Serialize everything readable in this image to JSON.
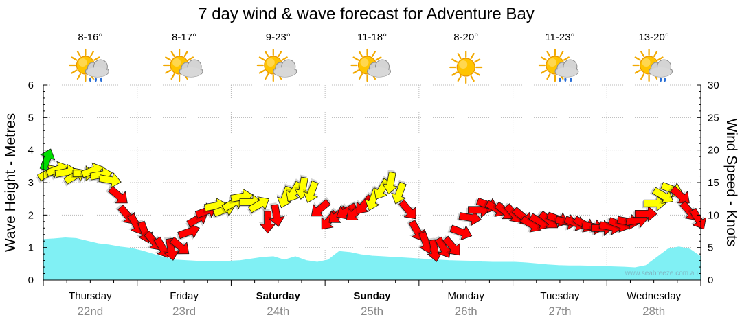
{
  "chart_data": {
    "type": "area",
    "title": "7 day wind & wave forecast for Adventure Bay",
    "ylabel_left": "Wave Height - Metres",
    "ylabel_right": "Wind Speed - Knots",
    "ylim_left": [
      0,
      6
    ],
    "ylim_right": [
      0,
      30
    ],
    "yticks_left": [
      "0",
      "1",
      "2",
      "3",
      "4",
      "5",
      "6"
    ],
    "yticks_right": [
      "0",
      "5",
      "10",
      "15",
      "20",
      "25",
      "30"
    ],
    "grid": true,
    "credit": "www.seabreeze.com.au",
    "days": [
      {
        "day": "Thursday",
        "date": "22nd",
        "temp": "8-16°",
        "weather": "partly-cloudy-showers",
        "bold": false
      },
      {
        "day": "Friday",
        "date": "23rd",
        "temp": "8-17°",
        "weather": "partly-cloudy",
        "bold": false
      },
      {
        "day": "Saturday",
        "date": "24th",
        "temp": "9-23°",
        "weather": "partly-cloudy",
        "bold": true
      },
      {
        "day": "Sunday",
        "date": "25th",
        "temp": "11-18°",
        "weather": "partly-cloudy",
        "bold": true
      },
      {
        "day": "Monday",
        "date": "26th",
        "temp": "8-20°",
        "weather": "sunny",
        "bold": false
      },
      {
        "day": "Tuesday",
        "date": "27th",
        "temp": "11-23°",
        "weather": "partly-cloudy-showers",
        "bold": false
      },
      {
        "day": "Wednesday",
        "date": "28th",
        "temp": "13-20°",
        "weather": "partly-cloudy-shower",
        "bold": false
      }
    ],
    "wave_height_m": [
      1.25,
      1.27,
      1.3,
      1.28,
      1.2,
      1.12,
      1.08,
      1.02,
      0.98,
      0.9,
      0.8,
      0.7,
      0.62,
      0.6,
      0.58,
      0.57,
      0.57,
      0.58,
      0.6,
      0.65,
      0.7,
      0.72,
      0.62,
      0.72,
      0.6,
      0.55,
      0.62,
      0.88,
      0.85,
      0.78,
      0.74,
      0.72,
      0.7,
      0.68,
      0.66,
      0.64,
      0.62,
      0.6,
      0.59,
      0.58,
      0.56,
      0.55,
      0.55,
      0.55,
      0.53,
      0.5,
      0.47,
      0.45,
      0.44,
      0.44,
      0.43,
      0.42,
      0.41,
      0.4,
      0.38,
      0.45,
      0.7,
      0.95,
      1.02,
      0.95,
      0.72
    ],
    "wind_knots": [
      16.5,
      17.0,
      16.6,
      16.0,
      16.4,
      16.8,
      16.2,
      15.4,
      13.0,
      10.0,
      8.6,
      7.4,
      6.0,
      5.0,
      4.8,
      5.2,
      7.4,
      9.4,
      10.6,
      11.4,
      10.8,
      11.8,
      12.8,
      12.0,
      11.6,
      9.0,
      10.0,
      12.8,
      13.6,
      14.2,
      13.6,
      11.0,
      9.2,
      10.0,
      10.6,
      10.4,
      11.6,
      12.4,
      14.0,
      15.0,
      13.4,
      10.8,
      7.6,
      5.8,
      4.6,
      5.0,
      5.2,
      7.4,
      9.6,
      10.8,
      11.6,
      11.0,
      10.6,
      10.2,
      9.8,
      8.6,
      9.0,
      9.2,
      9.4,
      9.0,
      8.8,
      8.6,
      8.2,
      8.0,
      8.2,
      8.6,
      9.0,
      9.2,
      10.2,
      11.8,
      13.0,
      14.0,
      13.0,
      10.6,
      9.4
    ],
    "wind_color": [
      "yellow",
      "yellow",
      "yellow",
      "yellow",
      "yellow",
      "yellow",
      "yellow",
      "yellow",
      "red",
      "red",
      "red",
      "red",
      "red",
      "red",
      "red",
      "red",
      "red",
      "red",
      "red",
      "yellow",
      "yellow",
      "yellow",
      "yellow",
      "yellow",
      "yellow",
      "red",
      "red",
      "yellow",
      "yellow",
      "yellow",
      "yellow",
      "red",
      "red",
      "red",
      "red",
      "red",
      "red",
      "yellow",
      "yellow",
      "yellow",
      "yellow",
      "red",
      "red",
      "red",
      "red",
      "red",
      "red",
      "red",
      "red",
      "red",
      "red",
      "red",
      "red",
      "red",
      "red",
      "red",
      "red",
      "red",
      "red",
      "red",
      "red",
      "red",
      "red",
      "red",
      "red",
      "red",
      "red",
      "red",
      "red",
      "yellow",
      "yellow",
      "yellow",
      "red",
      "red",
      "red"
    ],
    "wind_direction_deg": [
      60,
      70,
      80,
      60,
      90,
      70,
      80,
      100,
      130,
      140,
      150,
      160,
      140,
      150,
      170,
      130,
      70,
      60,
      70,
      80,
      70,
      60,
      80,
      90,
      60,
      180,
      170,
      200,
      210,
      190,
      200,
      230,
      220,
      230,
      240,
      230,
      220,
      200,
      210,
      190,
      200,
      140,
      150,
      160,
      170,
      150,
      140,
      110,
      100,
      90,
      110,
      120,
      130,
      140,
      130,
      120,
      120,
      130,
      110,
      100,
      110,
      120,
      100,
      90,
      100,
      110,
      100,
      80,
      90,
      90,
      120,
      110,
      130,
      140,
      150
    ],
    "wind_extra": {
      "color": "green",
      "knots": 18.5,
      "direction_deg": 20
    }
  }
}
